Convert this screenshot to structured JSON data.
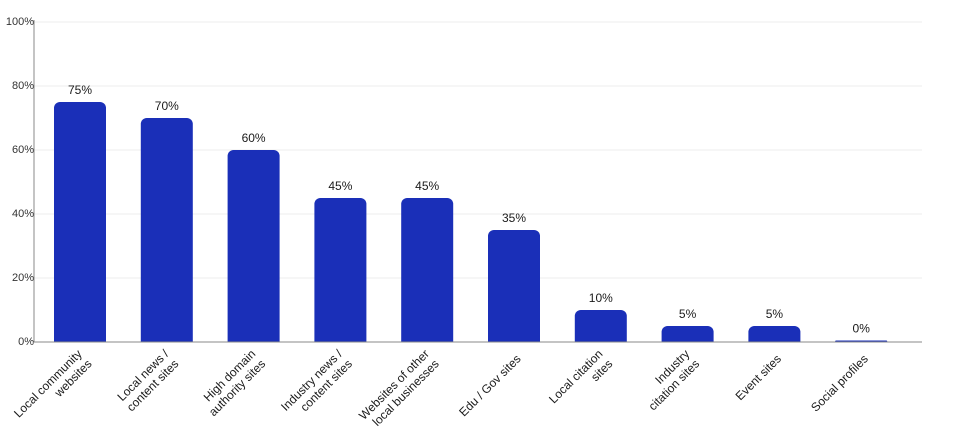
{
  "chart_data": {
    "type": "bar",
    "categories": [
      [
        "Local community",
        "websites"
      ],
      [
        "Local news /",
        "content sites"
      ],
      [
        "High domain",
        "authority sites"
      ],
      [
        "Industry news /",
        "content sites"
      ],
      [
        "Websites of other",
        "local businesses"
      ],
      [
        "Edu / Gov sites"
      ],
      [
        "Local citation",
        "sites"
      ],
      [
        "Industry",
        "citation sites"
      ],
      [
        "Event sites"
      ],
      [
        "Social profiles"
      ]
    ],
    "values": [
      75,
      70,
      60,
      45,
      45,
      35,
      10,
      5,
      5,
      0
    ],
    "data_labels": [
      "75%",
      "70%",
      "60%",
      "45%",
      "45%",
      "35%",
      "10%",
      "5%",
      "5%",
      "0%"
    ],
    "ylim": [
      0,
      100
    ],
    "yticks": [
      0,
      20,
      40,
      60,
      80,
      100
    ],
    "ytick_labels": [
      "0%",
      "20%",
      "40%",
      "60%",
      "80%",
      "100%"
    ],
    "grid": true,
    "bar_color": "#1a2fb8",
    "grid_color": "#ececec",
    "axis_color": "#888888"
  }
}
